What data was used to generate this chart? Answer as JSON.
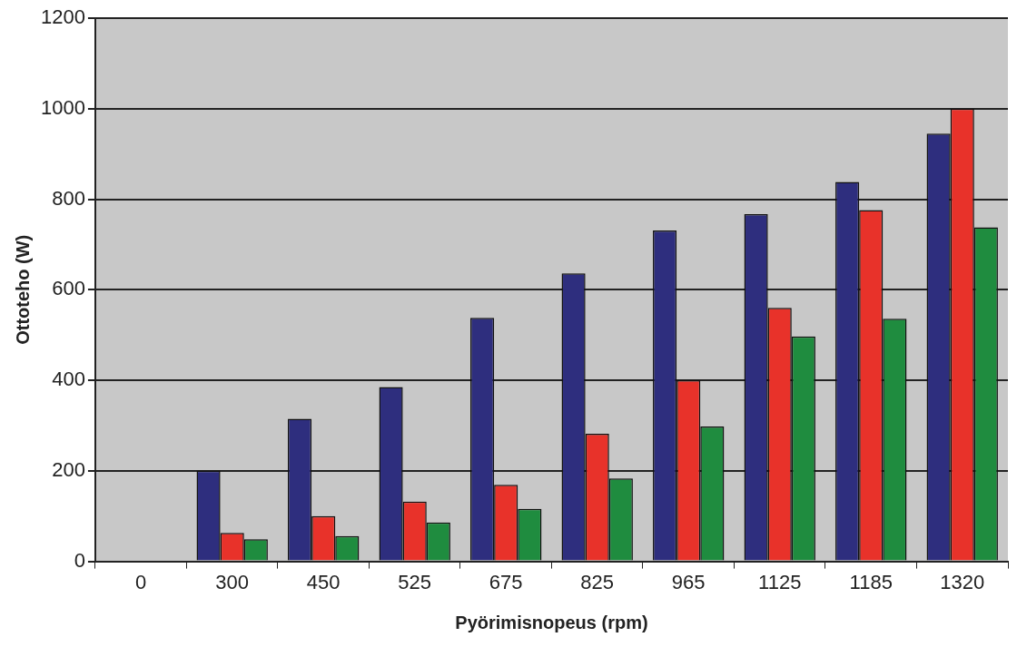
{
  "chart_data": {
    "type": "bar",
    "xlabel": "Pyörimisnopeus (rpm)",
    "ylabel": "Ottoteho (W)",
    "categories": [
      "0",
      "300",
      "450",
      "525",
      "675",
      "825",
      "965",
      "1125",
      "1185",
      "1320"
    ],
    "series": [
      {
        "color": "#2e2e7e",
        "values": [
          0,
          200,
          315,
          385,
          538,
          636,
          731,
          767,
          838,
          945
        ]
      },
      {
        "color": "#e8322a",
        "values": [
          0,
          63,
          100,
          132,
          169,
          282,
          400,
          560,
          776,
          1000
        ]
      },
      {
        "color": "#1f8c3f",
        "values": [
          0,
          49,
          56,
          86,
          116,
          183,
          298,
          497,
          536,
          738
        ]
      }
    ],
    "ylim": [
      0,
      1200
    ],
    "yticks": [
      0,
      200,
      400,
      600,
      800,
      1000,
      1200
    ],
    "grid": "y",
    "legend": false
  }
}
